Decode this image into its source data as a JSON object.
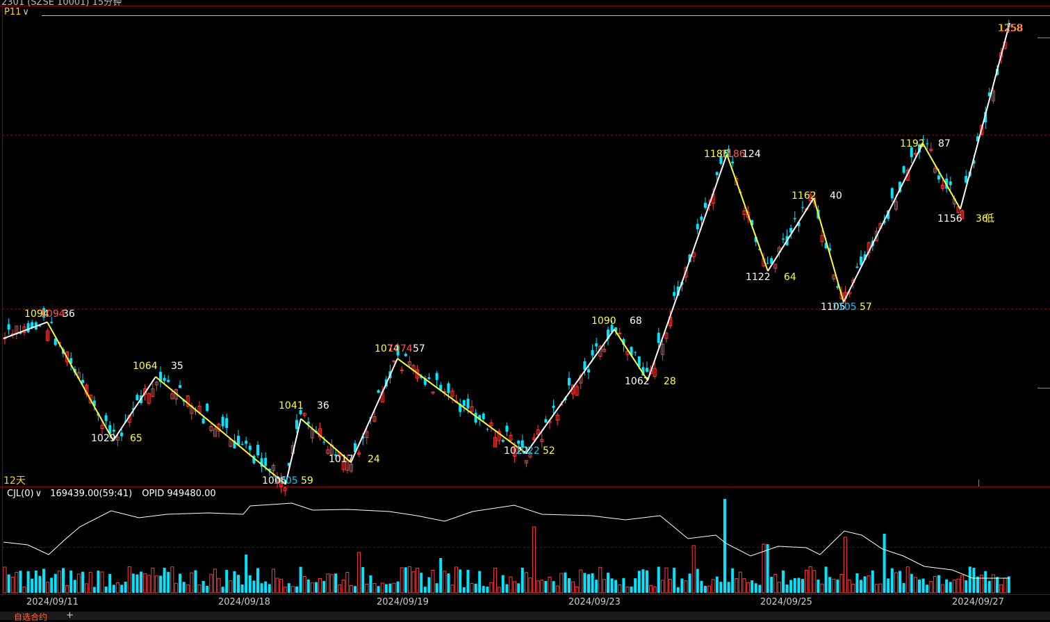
{
  "window": {
    "top_fragment": "2301 (SZSE 10001) 15分钟"
  },
  "main_panel": {
    "indicator_label": "P11",
    "indicator_chevron": "∨",
    "period_label": "12天"
  },
  "volume_panel": {
    "indicator_label": "CJL(0)",
    "indicator_chevron": "∨",
    "volume_text": "169439.00(59:41)",
    "opid_text": "OPID 949480.00"
  },
  "footer": {
    "tab_label": "自选合约",
    "add_icon": "+"
  },
  "colors": {
    "background": "#000000",
    "up": "#ff3b3b",
    "down": "#00e5ff",
    "zigzag_up": "#ffffff",
    "zigzag_down": "#ffff33",
    "label_yellow": "#ffff33",
    "label_white": "#ffffff",
    "label_red": "#ff5555",
    "label_cyan": "#00ccff",
    "grid": "#8b0000"
  },
  "chart_data": {
    "type": "candlestick",
    "x_dates": [
      "2024/09/11",
      "2024/09/18",
      "2024/09/19",
      "2024/09/23",
      "2024/09/25",
      "2024/09/27"
    ],
    "ylim": [
      1000,
      1260
    ],
    "zigzag": [
      {
        "v": 1085,
        "d": "start"
      },
      {
        "v": 1094,
        "d": "high"
      },
      {
        "v": 1029,
        "d": "low"
      },
      {
        "v": 1064,
        "d": "high"
      },
      {
        "v": 1005,
        "d": "low"
      },
      {
        "v": 1041,
        "d": "high"
      },
      {
        "v": 1017,
        "d": "low"
      },
      {
        "v": 1074,
        "d": "high"
      },
      {
        "v": 1022,
        "d": "low"
      },
      {
        "v": 1090,
        "d": "high"
      },
      {
        "v": 1062,
        "d": "low"
      },
      {
        "v": 1186,
        "d": "high"
      },
      {
        "v": 1122,
        "d": "low"
      },
      {
        "v": 1162,
        "d": "high"
      },
      {
        "v": 1105,
        "d": "low"
      },
      {
        "v": 1192,
        "d": "high"
      },
      {
        "v": 1156,
        "d": "low"
      },
      {
        "v": 1258,
        "d": "high"
      }
    ],
    "annotations": [
      {
        "text": "1094",
        "color": "yellow"
      },
      {
        "text": "1094",
        "color": "red"
      },
      {
        "text": "36",
        "color": "white"
      },
      {
        "text": "1029",
        "color": "white"
      },
      {
        "text": "65",
        "color": "yellow"
      },
      {
        "text": "1064",
        "color": "yellow"
      },
      {
        "text": "35",
        "color": "white"
      },
      {
        "text": "1005",
        "color": "white"
      },
      {
        "text": "1005",
        "color": "cyan"
      },
      {
        "text": "59",
        "color": "yellow"
      },
      {
        "text": "1041",
        "color": "yellow"
      },
      {
        "text": "36",
        "color": "white"
      },
      {
        "text": "1017",
        "color": "white"
      },
      {
        "text": "24",
        "color": "yellow"
      },
      {
        "text": "1074",
        "color": "yellow"
      },
      {
        "text": "1074",
        "color": "red"
      },
      {
        "text": "57",
        "color": "white"
      },
      {
        "text": "1022",
        "color": "white"
      },
      {
        "text": "1022",
        "color": "cyan"
      },
      {
        "text": "52",
        "color": "yellow"
      },
      {
        "text": "1090",
        "color": "yellow"
      },
      {
        "text": "68",
        "color": "white"
      },
      {
        "text": "1062",
        "color": "white"
      },
      {
        "text": "28",
        "color": "yellow"
      },
      {
        "text": "1186",
        "color": "yellow"
      },
      {
        "text": "1186",
        "color": "red"
      },
      {
        "text": "124",
        "color": "white"
      },
      {
        "text": "1122",
        "color": "white"
      },
      {
        "text": "64",
        "color": "yellow"
      },
      {
        "text": "1162",
        "color": "yellow"
      },
      {
        "text": "40",
        "color": "white"
      },
      {
        "text": "1105",
        "color": "white"
      },
      {
        "text": "1105",
        "color": "cyan"
      },
      {
        "text": "57",
        "color": "yellow"
      },
      {
        "text": "1192",
        "color": "yellow"
      },
      {
        "text": "87",
        "color": "white"
      },
      {
        "text": "1156",
        "color": "white"
      },
      {
        "text": "36",
        "color": "yellow"
      },
      {
        "text": "低",
        "color": "yellow"
      },
      {
        "text": "1258",
        "color": "yellow"
      },
      {
        "text": "1258",
        "color": "red"
      }
    ]
  }
}
